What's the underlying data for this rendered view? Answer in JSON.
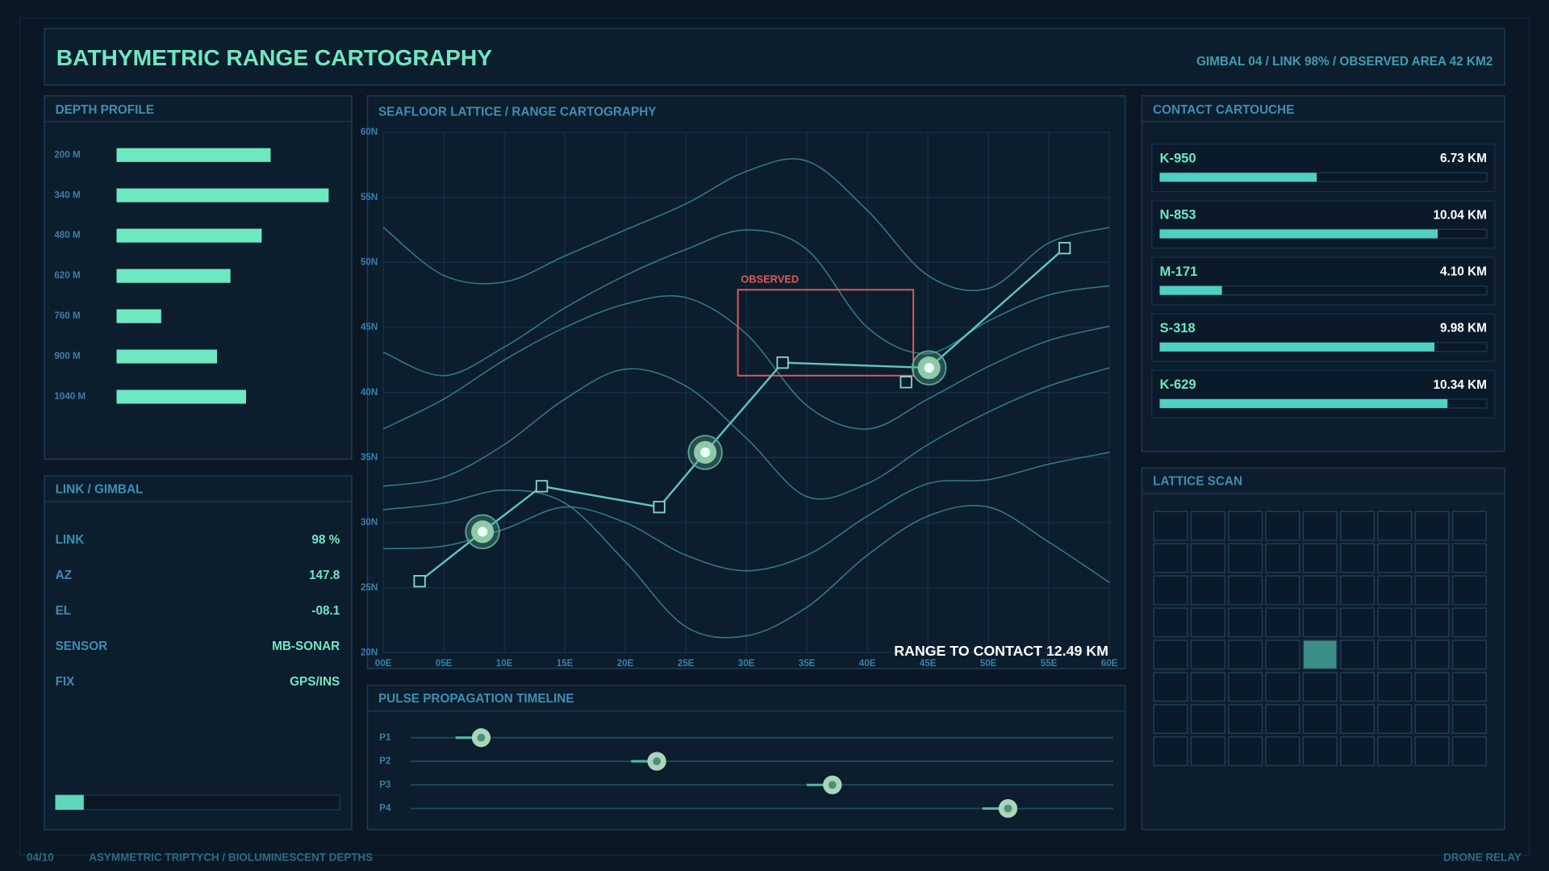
{
  "header": {
    "title": "BATHYMETRIC RANGE CARTOGRAPHY",
    "status": "GIMBAL 04 / LINK 98% / OBSERVED AREA 42 KM2"
  },
  "depth_profile": {
    "title": "DEPTH PROFILE",
    "type": "bar",
    "categories": [
      "200 M",
      "340 M",
      "480 M",
      "620 M",
      "760 M",
      "900 M",
      "1040 M"
    ],
    "values": [
      69,
      95,
      65,
      51,
      20,
      45,
      58
    ],
    "xlim": [
      0,
      100
    ],
    "color": "#6ee8c0"
  },
  "link_gimbal": {
    "title": "LINK / GIMBAL",
    "rows": [
      [
        "LINK",
        "98 %"
      ],
      [
        "AZ",
        "147.8"
      ],
      [
        "EL",
        "-08.1"
      ],
      [
        "SENSOR",
        "MB-SONAR"
      ],
      [
        "FIX",
        "GPS/INS"
      ]
    ],
    "progress": 10,
    "progress_lim": [
      0,
      100
    ]
  },
  "main_chart": {
    "type": "line",
    "title": "SEAFLOOR LATTICE / RANGE CARTOGRAPHY",
    "xlim": [
      0,
      60
    ],
    "ylim": [
      20,
      60
    ],
    "xticks": [
      {
        "value": 0,
        "label": "00E"
      },
      {
        "value": 5,
        "label": "05E"
      },
      {
        "value": 10,
        "label": "10E"
      },
      {
        "value": 15,
        "label": "15E"
      },
      {
        "value": 20,
        "label": "20E"
      },
      {
        "value": 25,
        "label": "25E"
      },
      {
        "value": 30,
        "label": "30E"
      },
      {
        "value": 35,
        "label": "35E"
      },
      {
        "value": 40,
        "label": "40E"
      },
      {
        "value": 45,
        "label": "45E"
      },
      {
        "value": 50,
        "label": "50E"
      },
      {
        "value": 55,
        "label": "55E"
      },
      {
        "value": 60,
        "label": "60E"
      }
    ],
    "yticks": [
      {
        "value": 20,
        "label": "20N"
      },
      {
        "value": 25,
        "label": "25N"
      },
      {
        "value": 30,
        "label": "30N"
      },
      {
        "value": 35,
        "label": "35N"
      },
      {
        "value": 40,
        "label": "40N"
      },
      {
        "value": 45,
        "label": "45N"
      },
      {
        "value": 50,
        "label": "50N"
      },
      {
        "value": 55,
        "label": "55N"
      },
      {
        "value": 60,
        "label": "60N"
      }
    ],
    "grid": true,
    "contours": {
      "color": "#3f8f98",
      "x": [
        0,
        5,
        10,
        15,
        20,
        25,
        30,
        35,
        40,
        45,
        50,
        55,
        60
      ],
      "series": [
        {
          "values": [
            52.7,
            49.0,
            48.5,
            50.5,
            52.5,
            54.5,
            57.0,
            57.8,
            54.0,
            49.0,
            48.0,
            51.5,
            52.7
          ]
        },
        {
          "values": [
            43.1,
            41.3,
            43.5,
            46.5,
            49.0,
            51.0,
            52.5,
            51.0,
            45.0,
            43.0,
            45.5,
            47.5,
            48.2
          ]
        },
        {
          "values": [
            37.2,
            39.5,
            42.5,
            45.0,
            46.8,
            47.3,
            44.5,
            39.0,
            37.2,
            39.5,
            42.0,
            44.0,
            45.1
          ]
        },
        {
          "values": [
            32.8,
            33.5,
            36.0,
            39.5,
            41.8,
            40.5,
            36.5,
            32.0,
            33.0,
            36.0,
            38.5,
            40.5,
            41.9
          ]
        },
        {
          "values": [
            28.0,
            28.2,
            29.5,
            31.2,
            30.0,
            27.5,
            26.3,
            27.5,
            30.5,
            33.0,
            33.3,
            34.5,
            35.4
          ]
        },
        {
          "values": [
            31.0,
            31.5,
            32.5,
            31.5,
            27.0,
            22.0,
            21.3,
            23.5,
            27.5,
            30.5,
            31.2,
            28.5,
            25.4
          ]
        }
      ]
    },
    "track": {
      "color": "#5ec4bc",
      "x": [
        3.0,
        8.2,
        13.1,
        22.8,
        26.6,
        33.0,
        45.1,
        56.3
      ],
      "values": [
        25.5,
        29.3,
        32.8,
        31.2,
        35.4,
        42.3,
        41.9,
        51.1
      ]
    },
    "waypoints": {
      "x": [
        3.0,
        13.1,
        22.8,
        33.0,
        43.2,
        56.3
      ],
      "values": [
        25.5,
        32.8,
        31.2,
        42.3,
        40.8,
        51.1
      ]
    },
    "contacts": {
      "x": [
        8.2,
        26.6,
        45.1
      ],
      "values": [
        29.3,
        35.4,
        41.9
      ]
    },
    "observed": {
      "label": "OBSERVED",
      "color": "#e05a5a",
      "x": [
        29.3,
        43.8
      ],
      "y": [
        41.3,
        47.9
      ]
    },
    "range_label": "RANGE TO CONTACT 12.49 KM"
  },
  "pulse_timeline": {
    "title": "PULSE PROPAGATION TIMELINE",
    "categories": [
      "P1",
      "P2",
      "P3",
      "P4"
    ],
    "values": [
      10,
      35,
      60,
      85
    ],
    "xlim": [
      0,
      100
    ]
  },
  "contact_cartouche": {
    "title": "CONTACT CARTOUCHE",
    "items": [
      {
        "id": "K-950",
        "range": "6.73 KM",
        "bar": 48
      },
      {
        "id": "N-853",
        "range": "10.04 KM",
        "bar": 85
      },
      {
        "id": "M-171",
        "range": "4.10 KM",
        "bar": 19
      },
      {
        "id": "S-318",
        "range": "9.98 KM",
        "bar": 84
      },
      {
        "id": "K-629",
        "range": "10.34 KM",
        "bar": 88
      }
    ],
    "bar_lim": [
      0,
      100
    ]
  },
  "lattice_scan": {
    "title": "LATTICE SCAN",
    "cols": 9,
    "rows": 8,
    "active": [
      4,
      4
    ]
  },
  "footer": {
    "page": "04/10",
    "caption": "ASYMMETRIC TRIPTYCH / BIOLUMINESCENT DEPTHS",
    "right": "DRONE RELAY"
  }
}
